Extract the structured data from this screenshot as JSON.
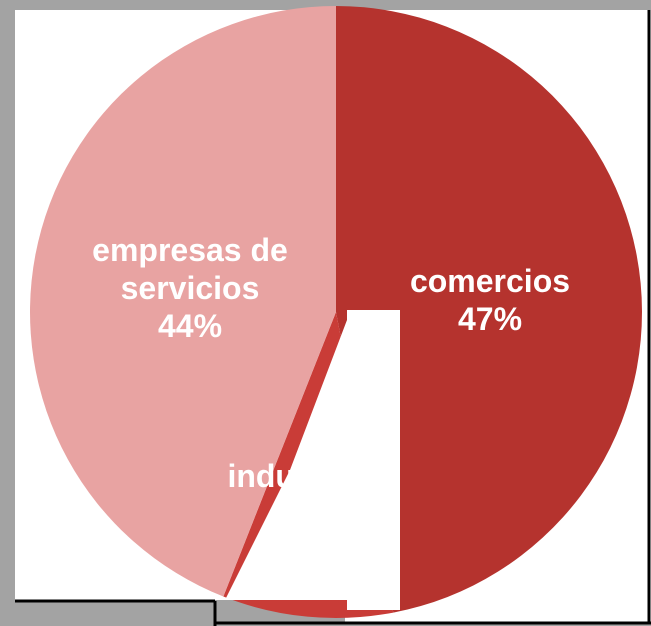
{
  "chart_data": {
    "type": "pie",
    "categories": [
      "comercios",
      "industria",
      "empresas de servicios"
    ],
    "values": [
      47,
      9,
      44
    ],
    "value_labels": [
      "47%",
      null,
      "44%"
    ],
    "colors": [
      "#b5332e",
      "#c93c37",
      "#e8a3a2"
    ]
  }
}
